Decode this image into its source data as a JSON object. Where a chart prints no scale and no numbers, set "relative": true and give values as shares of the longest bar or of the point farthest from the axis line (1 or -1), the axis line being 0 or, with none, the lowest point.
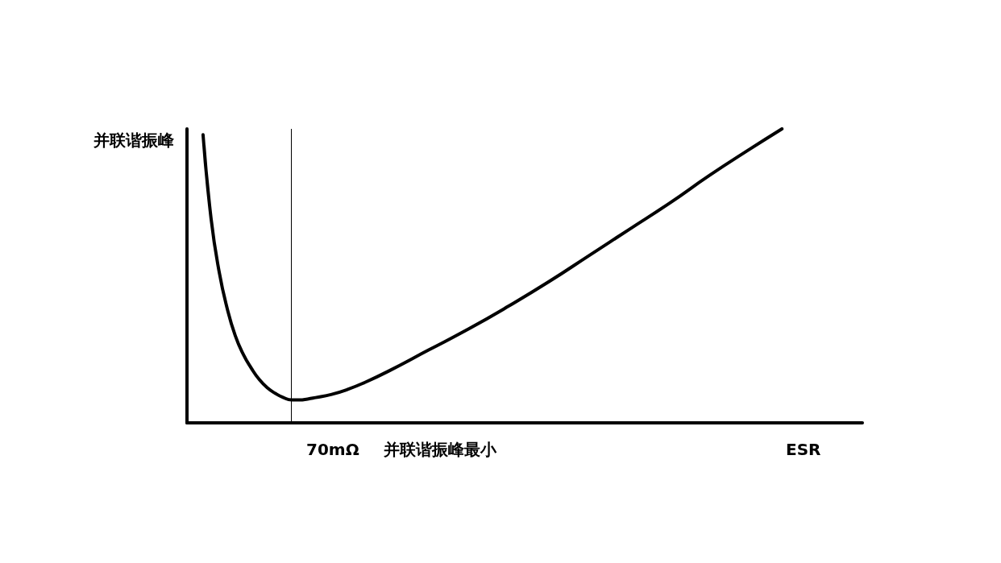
{
  "chart_data": {
    "type": "line",
    "relative": true,
    "ylabel": "并联谐振峰",
    "xlabel": "ESR",
    "annotations": [
      "70mΩ",
      "并联谐振峰最小"
    ],
    "categories": [
      null,
      null,
      null,
      null,
      null,
      null,
      null,
      null,
      null,
      null,
      null,
      null,
      null,
      null,
      null,
      null,
      null,
      null,
      null,
      null,
      null,
      null,
      null,
      null,
      null,
      null,
      null,
      null,
      null,
      null,
      null,
      null,
      null,
      null,
      null,
      null,
      null,
      null,
      null,
      null,
      null,
      null,
      null,
      null,
      null,
      null,
      null,
      null,
      null,
      null,
      null,
      null,
      null,
      null,
      null,
      null,
      null,
      null,
      null,
      null,
      null,
      null,
      null,
      null,
      null,
      null,
      null,
      null,
      null,
      null,
      null,
      null,
      null,
      null,
      null,
      null,
      null,
      null,
      null,
      null,
      null,
      null,
      null,
      null,
      null
    ],
    "series": [
      {
        "color": "#000000",
        "values": [
          null,
          null,
          0.98,
          0.694,
          0.514,
          0.389,
          0.297,
          0.233,
          0.186,
          0.147,
          0.119,
          0.1,
          0.086,
          0.078,
          0.078,
          0.081,
          0.086,
          null,
          0.097,
          null,
          0.114,
          null,
          0.136,
          null,
          null,
          0.175,
          null,
          null,
          null,
          null,
          0.247,
          null,
          null,
          null,
          null,
          0.319,
          null,
          null,
          null,
          null,
          0.397,
          null,
          null,
          null,
          null,
          0.48,
          null,
          null,
          null,
          null,
          0.569,
          null,
          null,
          null,
          null,
          0.658,
          null,
          null,
          null,
          null,
          0.747,
          null,
          null,
          null,
          null,
          0.842,
          null,
          null,
          null,
          null,
          0.931,
          null,
          null,
          null,
          1.0,
          null,
          null,
          null,
          null,
          null,
          null,
          null,
          null,
          null,
          null
        ]
      }
    ],
    "grid": false,
    "marker": "none",
    "line_style": "solid"
  }
}
